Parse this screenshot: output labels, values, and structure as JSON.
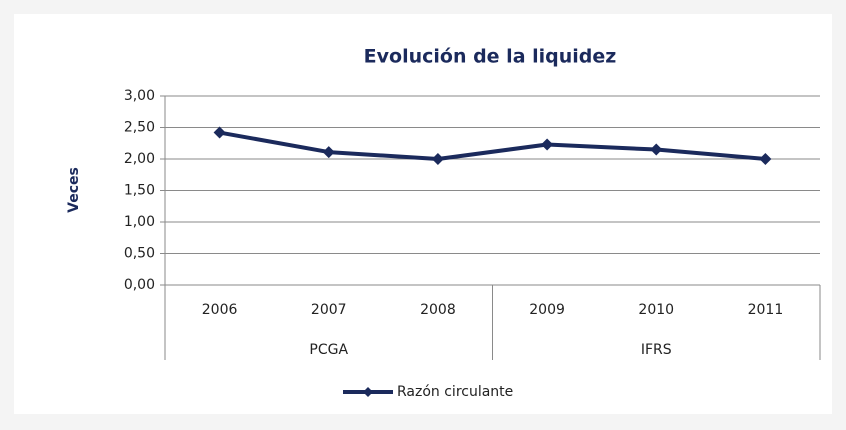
{
  "chart_data": {
    "type": "line",
    "title": "Evolución de la liquidez",
    "y_label": "Veces",
    "categories": [
      "2006",
      "2007",
      "2008",
      "2009",
      "2010",
      "2011"
    ],
    "category_groups": [
      "PCGA",
      "PCGA",
      "PCGA",
      "IFRS",
      "IFRS",
      "IFRS"
    ],
    "series": [
      {
        "name": "Razón circulante",
        "color": "#1b2a5c",
        "values": [
          2.42,
          2.11,
          2.0,
          2.23,
          2.15,
          2.0
        ]
      }
    ],
    "ylim": [
      0,
      3
    ],
    "yticks": [
      {
        "value": 0,
        "label": "0,00"
      },
      {
        "value": 0.5,
        "label": "0,50"
      },
      {
        "value": 1,
        "label": "1,00"
      },
      {
        "value": 1.5,
        "label": "1,50"
      },
      {
        "value": 2,
        "label": "2,00"
      },
      {
        "value": 2.5,
        "label": "2,50"
      },
      {
        "value": 3,
        "label": "3,00"
      }
    ],
    "grid": true,
    "legend": "bottom"
  }
}
